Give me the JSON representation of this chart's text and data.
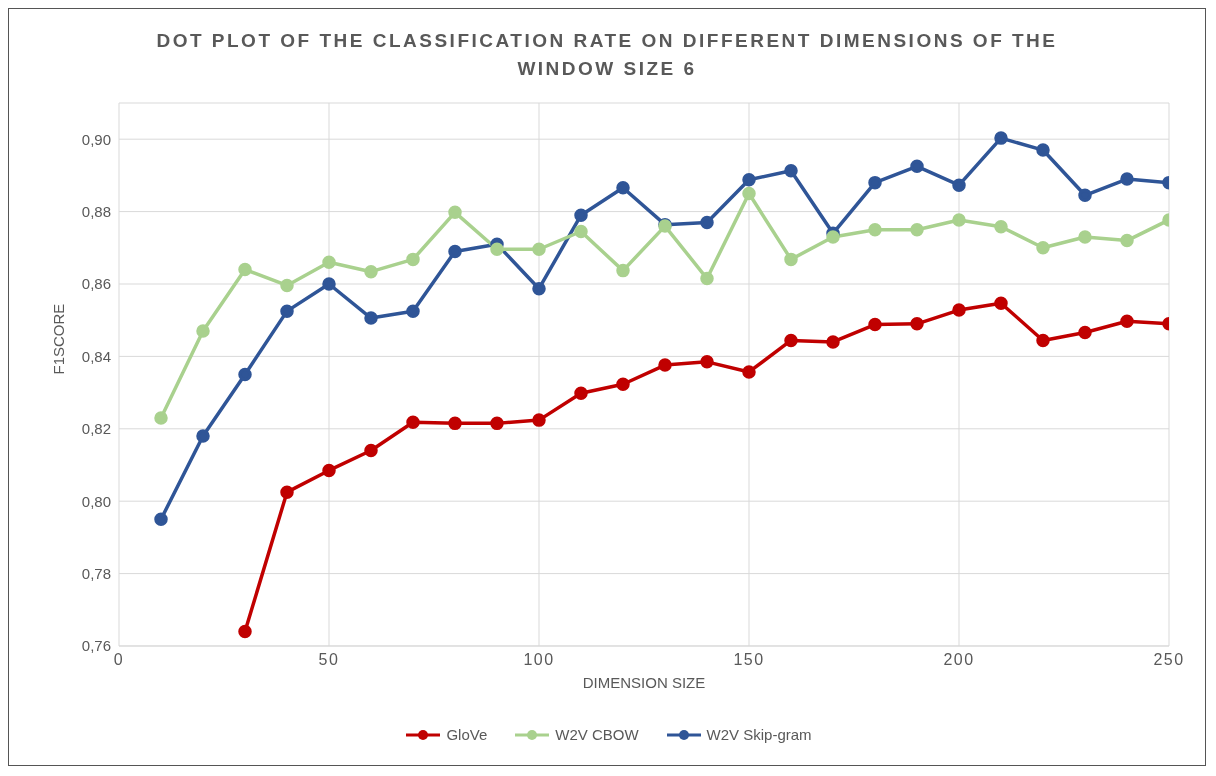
{
  "chart_data": {
    "type": "line",
    "title": "DOT PLOT OF THE CLASSIFICATION RATE ON DIFFERENT DIMENSIONS OF THE WINDOW SIZE 6",
    "xlabel": "DIMENSION SIZE",
    "ylabel": "F1SCORE",
    "x": [
      10,
      20,
      30,
      40,
      50,
      60,
      70,
      80,
      90,
      100,
      110,
      120,
      130,
      140,
      150,
      160,
      170,
      180,
      190,
      200,
      210,
      220,
      230,
      240,
      250
    ],
    "series": [
      {
        "name": "GloVe",
        "color": "#c00000",
        "values": [
          null,
          null,
          0.764,
          0.8025,
          0.8085,
          0.814,
          0.8218,
          0.8215,
          0.8215,
          0.8224,
          0.8298,
          0.8323,
          0.8376,
          0.8385,
          0.8357,
          0.8444,
          0.844,
          0.8488,
          0.849,
          0.8528,
          0.8547,
          0.8444,
          0.8466,
          0.8497,
          0.849
        ]
      },
      {
        "name": "W2V CBOW",
        "color": "#a9d18e",
        "values": [
          0.823,
          0.847,
          0.864,
          0.8596,
          0.866,
          0.8634,
          0.8668,
          0.8798,
          0.8696,
          0.8696,
          0.8745,
          0.8637,
          0.876,
          0.8615,
          0.885,
          0.8668,
          0.873,
          0.875,
          0.875,
          0.8777,
          0.8758,
          0.87,
          0.873,
          0.872,
          0.8777
        ]
      },
      {
        "name": "W2V Skip-gram",
        "color": "#2f5597",
        "values": [
          0.795,
          0.818,
          0.835,
          0.8525,
          0.86,
          0.8506,
          0.8525,
          0.869,
          0.871,
          0.8587,
          0.879,
          0.8866,
          0.8764,
          0.877,
          0.8888,
          0.8913,
          0.874,
          0.888,
          0.8925,
          0.8873,
          0.9003,
          0.897,
          0.8845,
          0.889,
          0.888
        ]
      }
    ],
    "xlim": [
      0,
      250
    ],
    "xticks": [
      0,
      50,
      100,
      150,
      200,
      250
    ],
    "ylim": [
      0.76,
      0.91
    ],
    "yticks": [
      {
        "value": 0.76,
        "label": "0,76"
      },
      {
        "value": 0.78,
        "label": "0,78"
      },
      {
        "value": 0.8,
        "label": "0,80"
      },
      {
        "value": 0.82,
        "label": "0,82"
      },
      {
        "value": 0.84,
        "label": "0,84"
      },
      {
        "value": 0.86,
        "label": "0,86"
      },
      {
        "value": 0.88,
        "label": "0,88"
      },
      {
        "value": 0.9,
        "label": "0,90"
      }
    ],
    "grid": true,
    "legend": "bottom",
    "marker": "circle",
    "line_style": "solid"
  }
}
